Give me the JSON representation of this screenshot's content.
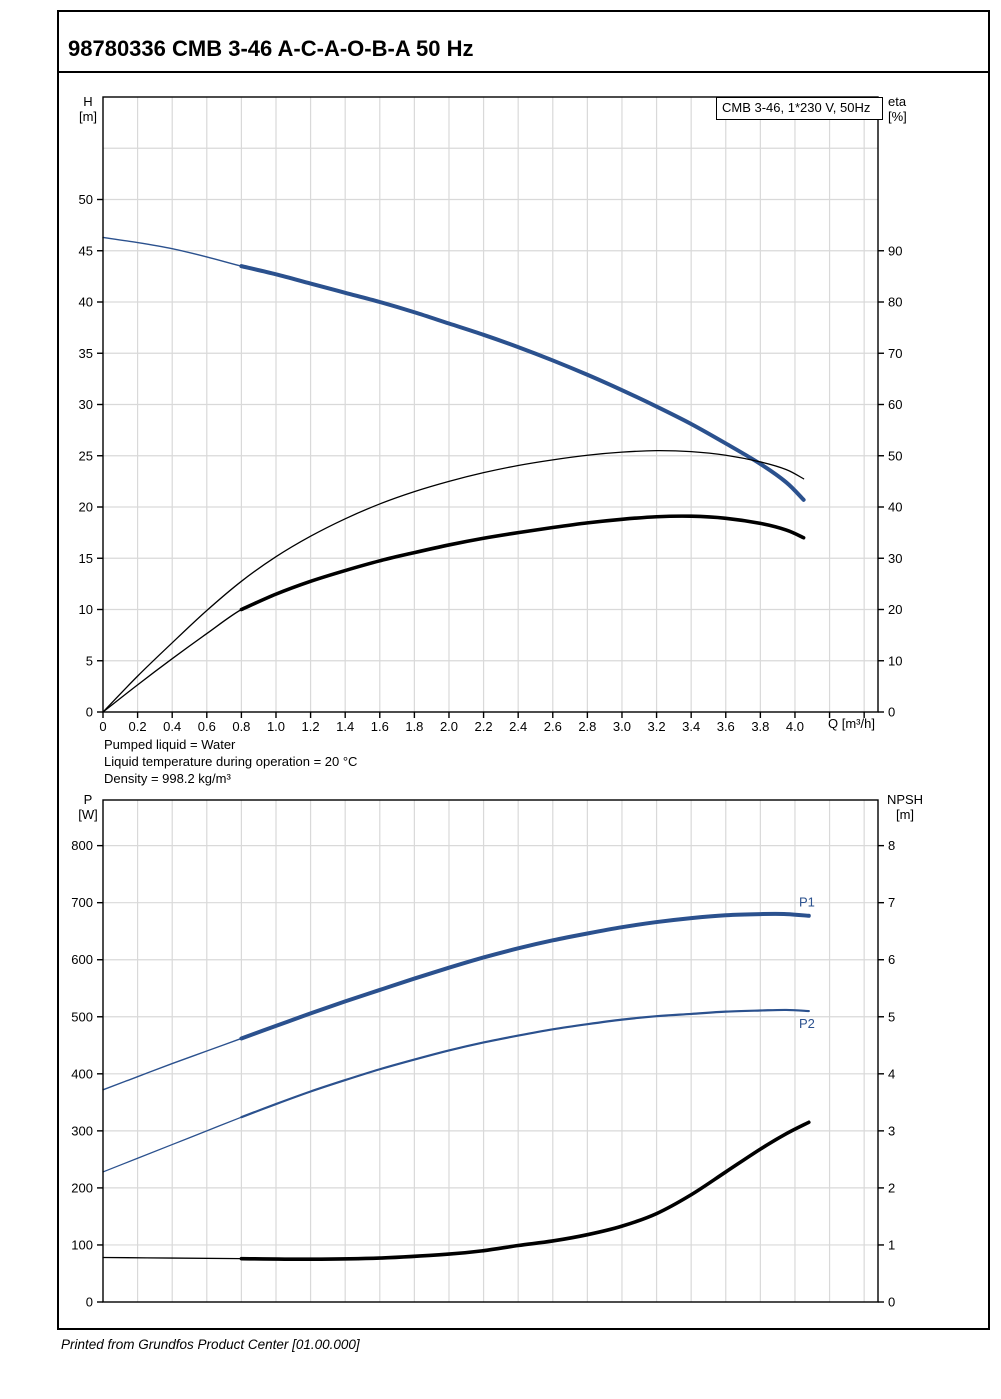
{
  "page": {
    "title": "98780336 CMB 3-46 A-C-A-O-B-A 50 Hz",
    "footer": "Printed from Grundfos Product Center [01.00.000]"
  },
  "conditions": [
    "Pumped liquid = Water",
    "Liquid temperature during operation = 20 °C",
    "Density = 998.2 kg/m³"
  ],
  "colors": {
    "curve_blue": "#2b518e",
    "curve_black": "#000000",
    "grid": "#d9d9d9",
    "axis": "#000000"
  },
  "chart_data": [
    {
      "type": "line",
      "legend": "CMB 3-46, 1*230 V, 50Hz",
      "x_axis": {
        "label": "Q [m³/h]",
        "range": [
          0,
          4.48
        ],
        "tick_step": 0.2,
        "grid_max": 4.4,
        "ticks": [
          0,
          0.2,
          0.4,
          0.6,
          0.8,
          1.0,
          1.2,
          1.4,
          1.6,
          1.8,
          2.0,
          2.2,
          2.4,
          2.6,
          2.8,
          3.0,
          3.2,
          3.4,
          3.6,
          3.8,
          4.0
        ],
        "unlabeled_ticks": [
          4.2,
          4.4
        ]
      },
      "y_left": {
        "label_top": "H",
        "label_unit": "[m]",
        "range": [
          0,
          60
        ],
        "ticks": [
          0,
          5,
          10,
          15,
          20,
          25,
          30,
          35,
          40,
          45,
          50
        ],
        "grid_extra": [
          55
        ]
      },
      "y_right": {
        "label_top": "eta",
        "label_unit": "[%]",
        "range": [
          0,
          120
        ],
        "ticks": [
          0,
          10,
          20,
          30,
          40,
          50,
          60,
          70,
          80,
          90
        ]
      },
      "series": [
        {
          "name": "head-curve",
          "axis": "left",
          "color_key": "curve_blue",
          "thin_width": 1.4,
          "thick_width": 4,
          "thick_from": 0.8,
          "points": [
            [
              0,
              46.3
            ],
            [
              0.2,
              45.8
            ],
            [
              0.4,
              45.2
            ],
            [
              0.6,
              44.4
            ],
            [
              0.8,
              43.5
            ],
            [
              1.0,
              42.7
            ],
            [
              1.2,
              41.8
            ],
            [
              1.4,
              40.9
            ],
            [
              1.6,
              40.0
            ],
            [
              1.8,
              39.0
            ],
            [
              2.0,
              37.9
            ],
            [
              2.2,
              36.8
            ],
            [
              2.4,
              35.6
            ],
            [
              2.6,
              34.3
            ],
            [
              2.8,
              32.9
            ],
            [
              3.0,
              31.4
            ],
            [
              3.2,
              29.8
            ],
            [
              3.4,
              28.1
            ],
            [
              3.6,
              26.2
            ],
            [
              3.8,
              24.2
            ],
            [
              3.95,
              22.4
            ],
            [
              4.05,
              20.7
            ]
          ]
        },
        {
          "name": "eta-pump-curve",
          "axis": "right",
          "color_key": "curve_black",
          "thin_width": 1.3,
          "thick_width": 1.3,
          "thick_from": 99,
          "points": [
            [
              0,
              0
            ],
            [
              0.2,
              7
            ],
            [
              0.4,
              13.5
            ],
            [
              0.6,
              19.8
            ],
            [
              0.8,
              25.5
            ],
            [
              1.0,
              30.3
            ],
            [
              1.2,
              34.3
            ],
            [
              1.4,
              37.7
            ],
            [
              1.6,
              40.6
            ],
            [
              1.8,
              43.0
            ],
            [
              2.0,
              45.0
            ],
            [
              2.2,
              46.7
            ],
            [
              2.4,
              48.1
            ],
            [
              2.6,
              49.2
            ],
            [
              2.8,
              50.1
            ],
            [
              3.0,
              50.7
            ],
            [
              3.2,
              51.0
            ],
            [
              3.4,
              50.8
            ],
            [
              3.6,
              50.1
            ],
            [
              3.8,
              48.8
            ],
            [
              3.95,
              47.3
            ],
            [
              4.05,
              45.5
            ]
          ]
        },
        {
          "name": "eta-total-curve",
          "axis": "right",
          "color_key": "curve_black",
          "thin_width": 1.3,
          "thick_width": 3.6,
          "thick_from": 0.8,
          "points": [
            [
              0,
              0
            ],
            [
              0.2,
              5.3
            ],
            [
              0.4,
              10.4
            ],
            [
              0.6,
              15.3
            ],
            [
              0.8,
              20.0
            ],
            [
              1.0,
              23.0
            ],
            [
              1.2,
              25.5
            ],
            [
              1.4,
              27.6
            ],
            [
              1.6,
              29.5
            ],
            [
              1.8,
              31.1
            ],
            [
              2.0,
              32.6
            ],
            [
              2.2,
              33.9
            ],
            [
              2.4,
              35.0
            ],
            [
              2.6,
              36.0
            ],
            [
              2.8,
              36.9
            ],
            [
              3.0,
              37.6
            ],
            [
              3.2,
              38.1
            ],
            [
              3.4,
              38.2
            ],
            [
              3.6,
              37.8
            ],
            [
              3.8,
              36.8
            ],
            [
              3.95,
              35.5
            ],
            [
              4.05,
              34.0
            ]
          ]
        }
      ],
      "annotations": []
    },
    {
      "type": "line",
      "legend": "",
      "x_axis": {
        "label": "",
        "range": [
          0,
          4.48
        ],
        "tick_step": 0.2,
        "grid_max": 4.4,
        "ticks": [],
        "unlabeled_ticks": []
      },
      "y_left": {
        "label_top": "P",
        "label_unit": "[W]",
        "range": [
          0,
          880
        ],
        "ticks": [
          0,
          100,
          200,
          300,
          400,
          500,
          600,
          700,
          800
        ],
        "grid_extra": []
      },
      "y_right": {
        "label_top": "NPSH",
        "label_unit": "[m]",
        "range": [
          0,
          8.8
        ],
        "ticks": [
          0,
          1,
          2,
          3,
          4,
          5,
          6,
          7,
          8
        ]
      },
      "series": [
        {
          "name": "p1-curve",
          "axis": "left",
          "color_key": "curve_blue",
          "thin_width": 1.4,
          "thick_width": 4,
          "thick_from": 0.8,
          "points": [
            [
              0,
              372
            ],
            [
              0.2,
              395
            ],
            [
              0.4,
              418
            ],
            [
              0.6,
              440
            ],
            [
              0.8,
              462
            ],
            [
              1.0,
              484
            ],
            [
              1.2,
              506
            ],
            [
              1.4,
              527
            ],
            [
              1.6,
              547
            ],
            [
              1.8,
              567
            ],
            [
              2.0,
              586
            ],
            [
              2.2,
              604
            ],
            [
              2.4,
              620
            ],
            [
              2.6,
              634
            ],
            [
              2.8,
              646
            ],
            [
              3.0,
              657
            ],
            [
              3.2,
              666
            ],
            [
              3.4,
              673
            ],
            [
              3.6,
              678
            ],
            [
              3.8,
              680
            ],
            [
              3.95,
              680
            ],
            [
              4.08,
              677
            ]
          ]
        },
        {
          "name": "p2-curve",
          "axis": "left",
          "color_key": "curve_blue",
          "thin_width": 1.3,
          "thick_width": 2.2,
          "thick_from": 0.8,
          "points": [
            [
              0,
              228
            ],
            [
              0.2,
              252
            ],
            [
              0.4,
              276
            ],
            [
              0.6,
              300
            ],
            [
              0.8,
              324
            ],
            [
              1.0,
              347
            ],
            [
              1.2,
              369
            ],
            [
              1.4,
              389
            ],
            [
              1.6,
              408
            ],
            [
              1.8,
              425
            ],
            [
              2.0,
              441
            ],
            [
              2.2,
              455
            ],
            [
              2.4,
              467
            ],
            [
              2.6,
              478
            ],
            [
              2.8,
              487
            ],
            [
              3.0,
              495
            ],
            [
              3.2,
              501
            ],
            [
              3.4,
              505
            ],
            [
              3.6,
              509
            ],
            [
              3.8,
              511
            ],
            [
              3.95,
              512
            ],
            [
              4.08,
              510
            ]
          ]
        },
        {
          "name": "npsh-curve",
          "axis": "right",
          "color_key": "curve_black",
          "thin_width": 1.3,
          "thick_width": 3.6,
          "thick_from": 0.8,
          "points": [
            [
              0,
              0.78
            ],
            [
              0.4,
              0.77
            ],
            [
              0.8,
              0.76
            ],
            [
              1.2,
              0.75
            ],
            [
              1.6,
              0.77
            ],
            [
              2.0,
              0.84
            ],
            [
              2.2,
              0.9
            ],
            [
              2.4,
              0.99
            ],
            [
              2.6,
              1.07
            ],
            [
              2.8,
              1.18
            ],
            [
              3.0,
              1.33
            ],
            [
              3.2,
              1.55
            ],
            [
              3.4,
              1.88
            ],
            [
              3.6,
              2.28
            ],
            [
              3.8,
              2.68
            ],
            [
              3.95,
              2.95
            ],
            [
              4.08,
              3.15
            ]
          ]
        }
      ],
      "annotations": [
        {
          "text": "P1",
          "q": 4.0,
          "v": 700,
          "axis": "left"
        },
        {
          "text": "P2",
          "q": 4.0,
          "v": 487,
          "axis": "left"
        }
      ]
    }
  ]
}
